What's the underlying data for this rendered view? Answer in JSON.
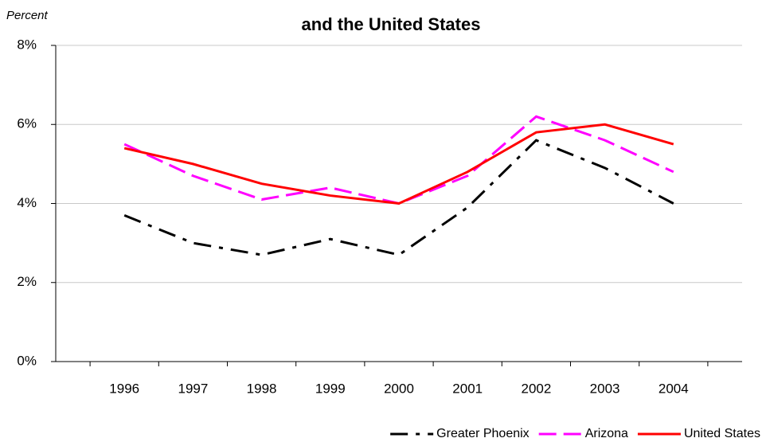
{
  "chart_data": {
    "type": "line",
    "title": "and the United States",
    "y_label": "Percent",
    "categories": [
      "1996",
      "1997",
      "1998",
      "1999",
      "2000",
      "2001",
      "2002",
      "2003",
      "2004"
    ],
    "series": [
      {
        "name": "Greater Phoenix",
        "color": "#000000",
        "dash": "dashdot",
        "values": [
          3.7,
          3.0,
          2.7,
          3.1,
          2.7,
          3.9,
          5.6,
          4.9,
          4.0
        ]
      },
      {
        "name": "Arizona",
        "color": "#ff00ff",
        "dash": "dash",
        "values": [
          5.5,
          4.7,
          4.1,
          4.4,
          4.0,
          4.7,
          6.2,
          5.6,
          4.8
        ]
      },
      {
        "name": "United States",
        "color": "#ff0000",
        "dash": "solid",
        "values": [
          5.4,
          5.0,
          4.5,
          4.2,
          4.0,
          4.8,
          5.8,
          6.0,
          5.5
        ]
      }
    ],
    "ylim": [
      0,
      8
    ],
    "yticks": [
      {
        "value": 0,
        "label": "0%"
      },
      {
        "value": 2,
        "label": "2%"
      },
      {
        "value": 4,
        "label": "4%"
      },
      {
        "value": 6,
        "label": "6%"
      },
      {
        "value": 8,
        "label": "8%"
      }
    ],
    "grid": true,
    "legend": "bottom-right"
  }
}
